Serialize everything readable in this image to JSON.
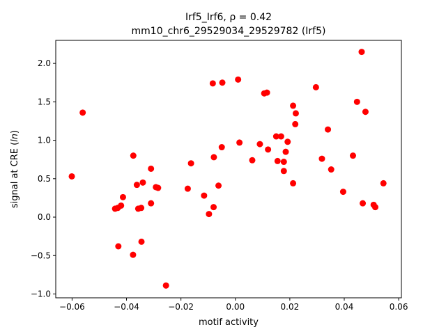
{
  "chart_data": {
    "type": "scatter",
    "title_line1": "Irf5_Irf6, ρ = 0.42",
    "title_line2": "mm10_chr6_29529034_29529782 (Irf5)",
    "xlabel": "motif activity",
    "ylabel_prefix": "signal at CRE (",
    "ylabel_var": "ln",
    "ylabel_suffix": ")",
    "xlim": [
      -0.066,
      0.061
    ],
    "ylim": [
      -1.05,
      2.3
    ],
    "xticks": [
      -0.06,
      -0.04,
      -0.02,
      0.0,
      0.02,
      0.04,
      0.06
    ],
    "xtick_labels": [
      "−0.06",
      "−0.04",
      "−0.02",
      "0.00",
      "0.02",
      "0.04",
      "0.06"
    ],
    "yticks": [
      -1.0,
      -0.5,
      0.0,
      0.5,
      1.0,
      1.5,
      2.0
    ],
    "ytick_labels": [
      "−1.0",
      "−0.5",
      "0.0",
      "0.5",
      "1.0",
      "1.5",
      "2.0"
    ],
    "grid": false,
    "marker_color": "#ff0000",
    "series": [
      {
        "points": [
          [
            -0.0601,
            0.53
          ],
          [
            -0.0561,
            1.36
          ],
          [
            -0.0442,
            0.11
          ],
          [
            -0.0432,
            0.12
          ],
          [
            -0.043,
            -0.38
          ],
          [
            -0.042,
            0.15
          ],
          [
            -0.0413,
            0.26
          ],
          [
            -0.0376,
            -0.49
          ],
          [
            -0.0375,
            0.8
          ],
          [
            -0.0362,
            0.42
          ],
          [
            -0.0357,
            0.11
          ],
          [
            -0.0346,
            0.12
          ],
          [
            -0.0345,
            -0.32
          ],
          [
            -0.034,
            0.45
          ],
          [
            -0.031,
            0.63
          ],
          [
            -0.031,
            0.18
          ],
          [
            -0.0292,
            0.39
          ],
          [
            -0.0284,
            0.38
          ],
          [
            -0.0255,
            -0.89
          ],
          [
            -0.0175,
            0.37
          ],
          [
            -0.0163,
            0.7
          ],
          [
            -0.0115,
            0.28
          ],
          [
            -0.0097,
            0.04
          ],
          [
            -0.008,
            0.13
          ],
          [
            -0.0083,
            1.74
          ],
          [
            -0.0079,
            0.78
          ],
          [
            -0.0062,
            0.41
          ],
          [
            -0.005,
            0.91
          ],
          [
            -0.0048,
            1.75
          ],
          [
            0.001,
            1.79
          ],
          [
            0.0015,
            0.97
          ],
          [
            0.0062,
            0.74
          ],
          [
            0.009,
            0.95
          ],
          [
            0.0106,
            1.61
          ],
          [
            0.0116,
            1.62
          ],
          [
            0.012,
            0.88
          ],
          [
            0.015,
            1.05
          ],
          [
            0.0155,
            0.73
          ],
          [
            0.0168,
            1.05
          ],
          [
            0.0178,
            0.72
          ],
          [
            0.0178,
            0.6
          ],
          [
            0.0185,
            0.85
          ],
          [
            0.0192,
            0.98
          ],
          [
            0.0212,
            1.45
          ],
          [
            0.0212,
            0.44
          ],
          [
            0.022,
            1.21
          ],
          [
            0.0222,
            1.35
          ],
          [
            0.0296,
            1.69
          ],
          [
            0.0318,
            0.76
          ],
          [
            0.034,
            1.14
          ],
          [
            0.0352,
            0.62
          ],
          [
            0.0396,
            0.33
          ],
          [
            0.0432,
            0.8
          ],
          [
            0.0447,
            1.5
          ],
          [
            0.0464,
            2.15
          ],
          [
            0.0468,
            0.18
          ],
          [
            0.0478,
            1.37
          ],
          [
            0.0508,
            0.16
          ],
          [
            0.0514,
            0.13
          ],
          [
            0.0544,
            0.44
          ]
        ]
      }
    ]
  }
}
